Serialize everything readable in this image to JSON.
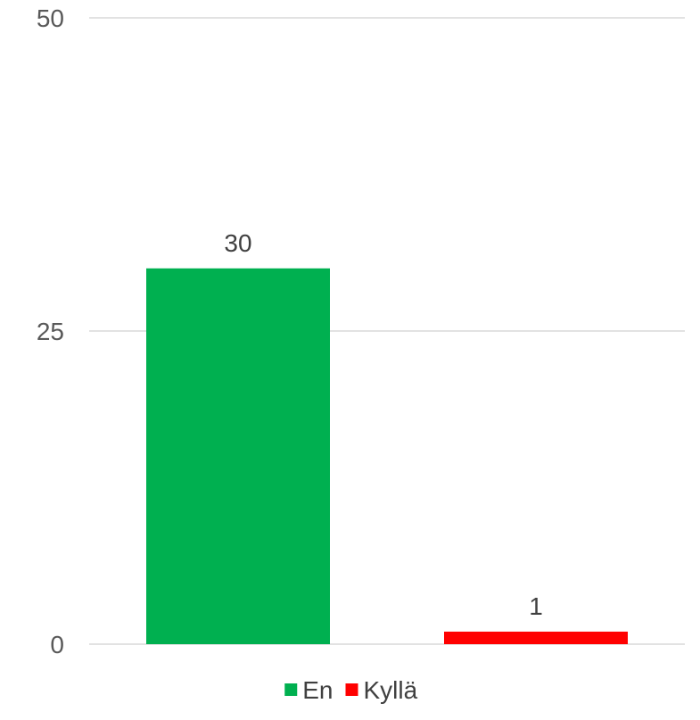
{
  "chart_data": {
    "type": "bar",
    "categories": [
      "En",
      "Kyllä"
    ],
    "values": [
      30,
      1
    ],
    "data_labels": [
      "30",
      "1"
    ],
    "colors": [
      "#00b050",
      "#ff0000"
    ],
    "ylim": [
      0,
      50
    ],
    "yticks": [
      0,
      25,
      50
    ],
    "ytick_labels": [
      "0",
      "25",
      "50"
    ],
    "grid": true,
    "legend_position": "bottom",
    "legend": [
      {
        "label": "En",
        "color": "#00b050"
      },
      {
        "label": "Kyllä",
        "color": "#ff0000"
      }
    ]
  }
}
